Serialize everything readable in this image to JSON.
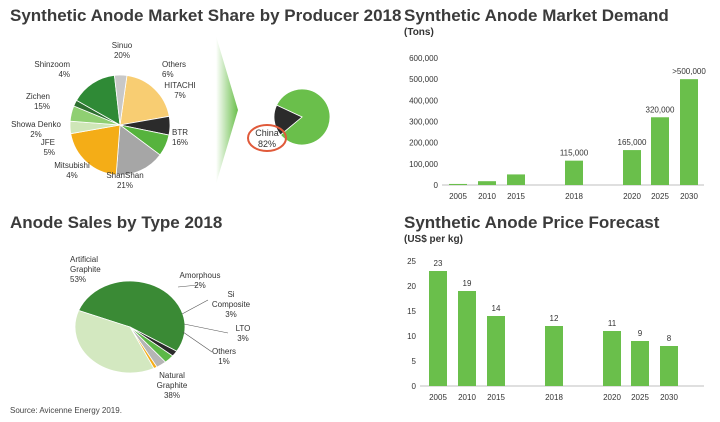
{
  "colors": {
    "green": "#6abf4b",
    "dark_green": "#2e7d32",
    "light_green": "#cfe6b8",
    "china_ring": "#e05a3a"
  },
  "source": "Source: Avicenne Energy 2019.",
  "chart_data": [
    {
      "type": "pie",
      "title": "Synthetic Anode Market Share by Producer 2018",
      "slices": [
        {
          "label": "Sinuo",
          "value": 20,
          "pct": "20%",
          "color": "#f8cd72"
        },
        {
          "label": "Others",
          "value": 6,
          "pct": "6%",
          "color": "#2b2b2b"
        },
        {
          "label": "HITACHI",
          "value": 7,
          "pct": "7%",
          "color": "#56b33d"
        },
        {
          "label": "BTR",
          "value": 16,
          "pct": "16%",
          "color": "#a6a6a6"
        },
        {
          "label": "ShanShan",
          "value": 21,
          "pct": "21%",
          "color": "#f4ad17"
        },
        {
          "label": "Mitsubishi",
          "value": 4,
          "pct": "4%",
          "color": "#cfe6b8"
        },
        {
          "label": "JFE",
          "value": 5,
          "pct": "5%",
          "color": "#8fcf72"
        },
        {
          "label": "Showa Denko",
          "value": 2,
          "pct": "2%",
          "color": "#2e6f30"
        },
        {
          "label": "Zichen",
          "value": 15,
          "pct": "15%",
          "color": "#2f8a36"
        },
        {
          "label": "Shinzoom",
          "value": 4,
          "pct": "4%",
          "color": "#c8c8c8"
        }
      ],
      "inset": {
        "label": "China",
        "pct": "82%",
        "slices": [
          {
            "value": 82,
            "color": "#6abf4b"
          },
          {
            "value": 18,
            "color": "#2b2b2b"
          }
        ]
      }
    },
    {
      "type": "bar",
      "title": "Synthetic Anode Market Demand",
      "ylabel": "(Tons)",
      "categories": [
        "2005",
        "2010",
        "2015",
        "2018",
        "2020",
        "2025",
        "2030"
      ],
      "values": [
        5000,
        18000,
        50000,
        115000,
        165000,
        320000,
        500000
      ],
      "data_labels": [
        "",
        "",
        "",
        "115,000",
        "165,000",
        "320,000",
        ">500,000"
      ],
      "ylim": [
        0,
        600000
      ],
      "yticks": [
        0,
        100000,
        200000,
        300000,
        400000,
        500000,
        600000
      ],
      "ytick_labels": [
        "0",
        "100,000",
        "200,000",
        "300,000",
        "400,000",
        "500,000",
        "600,000"
      ]
    },
    {
      "type": "pie",
      "title": "Anode Sales by Type 2018",
      "slices": [
        {
          "label": "Artificial Graphite",
          "value": 53,
          "pct": "53%",
          "color": "#3a8a35"
        },
        {
          "label": "Amorphous",
          "value": 2,
          "pct": "2%",
          "color": "#2b2b2b"
        },
        {
          "label": "Si Composite",
          "value": 3,
          "pct": "3%",
          "color": "#5cb847"
        },
        {
          "label": "LTO",
          "value": 3,
          "pct": "3%",
          "color": "#b5b5b5"
        },
        {
          "label": "Others",
          "value": 1,
          "pct": "1%",
          "color": "#f4ad17"
        },
        {
          "label": "Natural Graphite",
          "value": 38,
          "pct": "38%",
          "color": "#d3e8c0"
        }
      ]
    },
    {
      "type": "bar",
      "title": "Synthetic Anode Price Forecast",
      "ylabel": "(US$ per kg)",
      "categories": [
        "2005",
        "2010",
        "2015",
        "2018",
        "2020",
        "2025",
        "2030"
      ],
      "values": [
        23,
        19,
        14,
        12,
        11,
        9,
        8
      ],
      "data_labels": [
        "23",
        "19",
        "14",
        "12",
        "11",
        "9",
        "8"
      ],
      "ylim": [
        0,
        25
      ],
      "yticks": [
        0,
        5,
        10,
        15,
        20,
        25
      ],
      "ytick_labels": [
        "0",
        "5",
        "10",
        "15",
        "20",
        "25"
      ]
    }
  ]
}
